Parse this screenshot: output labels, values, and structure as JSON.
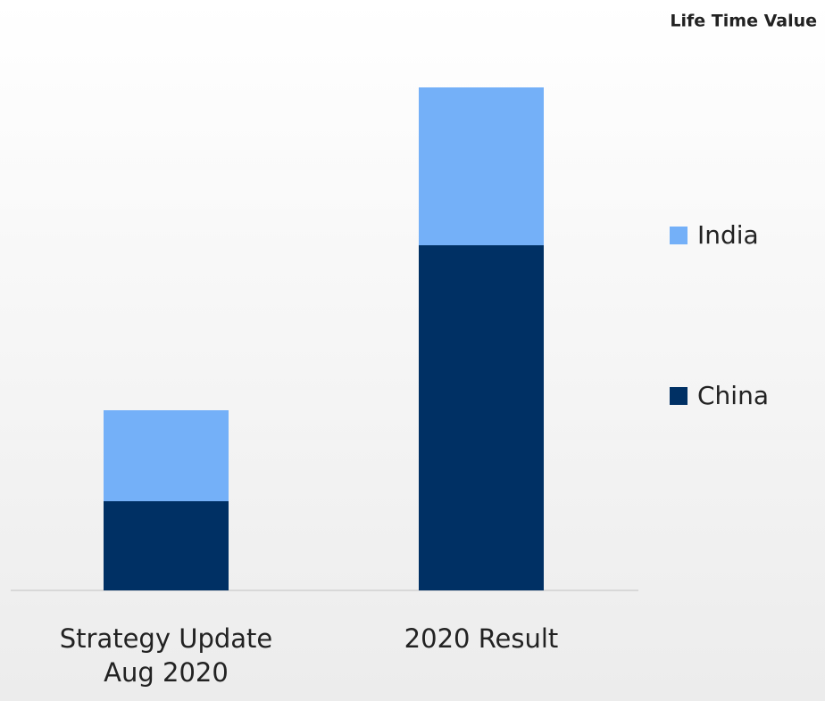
{
  "chart_data": {
    "type": "stacked_bar",
    "title": "Life Time Value",
    "categories": [
      "Strategy Update Aug 2020",
      "2020 Result"
    ],
    "series": [
      {
        "name": "China",
        "color": "#003064",
        "values": [
          100,
          387
        ]
      },
      {
        "name": "India",
        "color": "#74b0f8",
        "values": [
          102,
          177
        ]
      }
    ],
    "ylim": [
      0,
      600
    ]
  }
}
